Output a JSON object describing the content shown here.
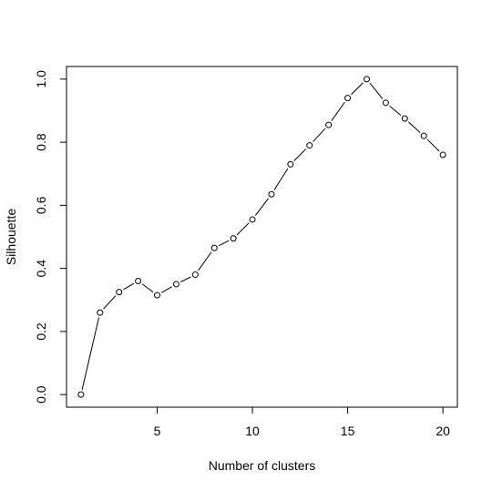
{
  "chart_data": {
    "type": "scatter",
    "style": "points-connected-by-line",
    "title": "",
    "xlabel": "Number of clusters",
    "ylabel": "Silhouette",
    "xlim": [
      0.24,
      20.76
    ],
    "ylim": [
      -0.04,
      1.04
    ],
    "x_ticks": [
      5,
      10,
      15,
      20
    ],
    "y_ticks": [
      0.0,
      0.2,
      0.4,
      0.6,
      0.8,
      1.0
    ],
    "x_tick_labels": [
      "5",
      "10",
      "15",
      "20"
    ],
    "y_tick_labels": [
      "0.0",
      "0.2",
      "0.4",
      "0.6",
      "0.8",
      "1.0"
    ],
    "grid": false,
    "legend": "none",
    "series": [
      {
        "x": [
          1,
          2,
          3,
          4,
          5,
          6,
          7,
          8,
          9,
          10,
          11,
          12,
          13,
          14,
          15,
          16,
          17,
          18,
          19,
          20
        ],
        "values": [
          0.0,
          0.26,
          0.325,
          0.36,
          0.315,
          0.35,
          0.38,
          0.465,
          0.495,
          0.555,
          0.635,
          0.73,
          0.79,
          0.855,
          0.94,
          1.0,
          0.925,
          0.875,
          0.82,
          0.76
        ],
        "marker": "open-circle",
        "color": "#000000"
      }
    ]
  }
}
